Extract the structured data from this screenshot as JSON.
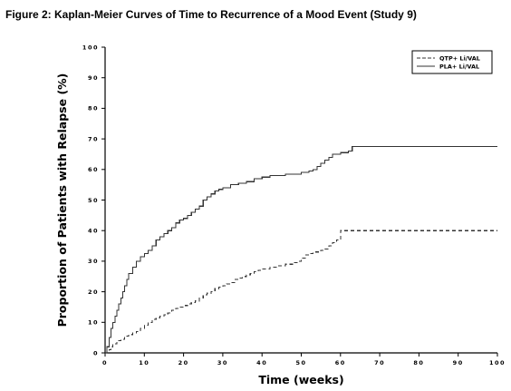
{
  "figure": {
    "title": "Figure 2: Kaplan-Meier Curves of Time to Recurrence of a Mood Event (Study 9)"
  },
  "chart_data": {
    "type": "line",
    "step": true,
    "title": "Figure 2: Kaplan-Meier Curves of Time to Recurrence of a Mood Event (Study 9)",
    "xlabel": "Time (weeks)",
    "ylabel": "Proportion of Patients with Relapse (%)",
    "xlim": [
      0,
      100
    ],
    "ylim": [
      0,
      100
    ],
    "xticks": [
      "0",
      "10",
      "20",
      "30",
      "40",
      "50",
      "60",
      "70",
      "80",
      "90",
      "100"
    ],
    "yticks": [
      "0",
      "10",
      "20",
      "30",
      "40",
      "50",
      "60",
      "70",
      "80",
      "90",
      "100"
    ],
    "grid": false,
    "legend_position": "top-right",
    "series": [
      {
        "name": "QTP+ Li/VAL",
        "style": "dashed",
        "color": "#333333",
        "x": [
          0,
          0.5,
          1,
          1.5,
          2,
          3,
          4,
          5,
          6,
          7,
          8,
          9,
          10,
          11,
          12,
          13,
          14,
          15,
          16,
          17,
          18,
          19,
          20,
          21,
          22,
          23,
          24,
          25,
          26,
          27,
          28,
          29,
          30,
          31,
          32,
          33,
          34,
          35,
          36,
          37,
          38,
          39,
          40,
          41,
          42,
          43,
          44,
          45,
          46,
          47,
          48,
          49,
          50,
          51,
          52,
          53,
          54,
          55,
          56,
          57,
          58,
          59,
          60,
          100
        ],
        "y": [
          0,
          0.5,
          1,
          2,
          3,
          4,
          4.5,
          5.5,
          6,
          6.5,
          7,
          8,
          9,
          10,
          11,
          11.5,
          12,
          12.5,
          13,
          14,
          14.5,
          15,
          15.5,
          16,
          16.5,
          17,
          18,
          19,
          19.5,
          20,
          21,
          21.5,
          22,
          22.5,
          23,
          24,
          24.5,
          25,
          25.5,
          26,
          26.5,
          27,
          27.5,
          27.5,
          28,
          28,
          28.5,
          28.5,
          29,
          29,
          29.5,
          30,
          31,
          32,
          32.5,
          33,
          33,
          33.5,
          34,
          35,
          36,
          37,
          40,
          40
        ]
      },
      {
        "name": "PLA+ Li/VAL",
        "style": "solid",
        "color": "#333333",
        "x": [
          0,
          0.5,
          1,
          1.5,
          2,
          2.5,
          3,
          3.5,
          4,
          4.5,
          5,
          5.5,
          6,
          7,
          8,
          9,
          10,
          11,
          12,
          13,
          14,
          15,
          16,
          17,
          18,
          19,
          20,
          21,
          22,
          23,
          24,
          25,
          26,
          27,
          28,
          29,
          30,
          32,
          34,
          36,
          38,
          40,
          42,
          44,
          46,
          48,
          50,
          52,
          53,
          54,
          55,
          56,
          57,
          58,
          60,
          62,
          63,
          100
        ],
        "y": [
          0,
          2,
          5,
          8,
          10,
          12,
          14,
          16,
          18,
          20,
          22,
          24,
          26,
          28,
          30,
          31.5,
          32.5,
          33.5,
          35,
          37,
          38,
          39,
          40,
          41,
          42.5,
          43.5,
          44,
          45,
          46,
          47,
          48,
          50,
          51,
          52,
          53,
          53.5,
          54,
          55,
          55.5,
          56,
          57,
          57.5,
          58,
          58,
          58.5,
          58.5,
          59,
          59.5,
          60,
          61,
          62,
          63,
          64,
          65,
          65.5,
          66,
          67.5,
          67.5
        ]
      }
    ]
  }
}
